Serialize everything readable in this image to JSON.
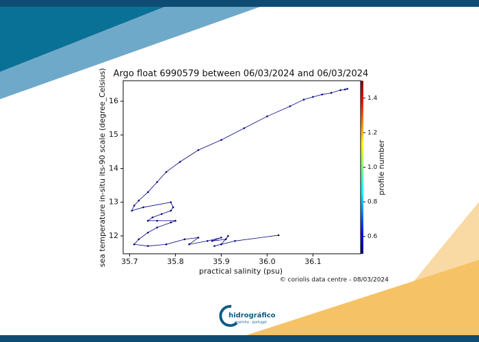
{
  "chart_data": {
    "type": "line",
    "title": "Argo float 6990579 between 06/03/2024 and 06/03/2024",
    "xlabel": "practical salinity (psu)",
    "ylabel": "sea temperature in-situ its-90 scale (degree_Celsius)",
    "colorbar_label": "profile number",
    "xlim": [
      35.686,
      36.204
    ],
    "ylim": [
      11.47,
      16.61
    ],
    "xticks": [
      35.7,
      35.8,
      35.9,
      {
        "value": 36,
        "label": "36.0"
      },
      36.1
    ],
    "yticks": [
      12,
      13,
      14,
      15,
      16
    ],
    "clim": [
      0.5,
      1.5
    ],
    "cticks": [
      0.6,
      0.8,
      {
        "value": 1,
        "label": "1.0"
      },
      1.2,
      1.4
    ],
    "series": [
      {
        "color": "#00007f",
        "x": [
          36.175,
          36.17,
          36.16,
          36.14,
          36.12,
          36.1,
          36.08,
          36.05,
          36.0,
          35.95,
          35.9,
          35.85,
          35.81,
          35.78,
          35.76,
          35.74,
          35.72,
          35.71,
          35.705,
          35.73,
          35.79,
          35.795,
          35.79,
          35.77,
          35.75,
          35.74,
          35.76,
          35.8,
          35.79,
          35.76,
          35.74,
          35.72,
          35.71,
          35.74,
          35.78,
          35.82,
          35.85,
          35.83,
          35.87,
          35.9,
          35.88,
          35.91,
          35.915,
          35.9,
          35.885,
          35.93,
          36.025
        ],
        "values": [
          16.37,
          16.35,
          16.33,
          16.25,
          16.2,
          16.13,
          16.05,
          15.85,
          15.55,
          15.2,
          14.85,
          14.55,
          14.2,
          13.9,
          13.6,
          13.3,
          13.05,
          12.9,
          12.75,
          12.85,
          13.0,
          12.85,
          12.75,
          12.65,
          12.55,
          12.45,
          12.45,
          12.45,
          12.4,
          12.25,
          12.1,
          11.9,
          11.75,
          11.7,
          11.75,
          11.9,
          11.95,
          11.75,
          11.85,
          11.95,
          11.85,
          11.9,
          12.0,
          11.75,
          11.7,
          11.85,
          12.02
        ]
      }
    ]
  },
  "credit": "© coriolis data centre - 08/03/2024",
  "logo_text": "hidrográfico",
  "logo_subtext": "marinha · portugal"
}
